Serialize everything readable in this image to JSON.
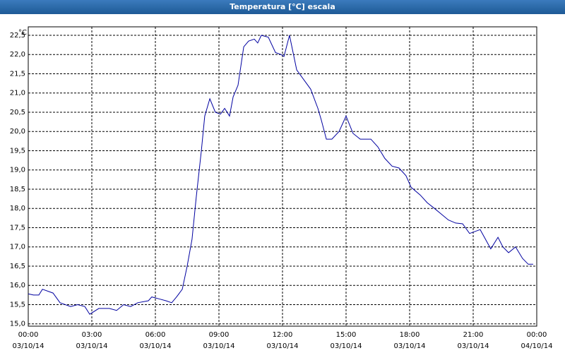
{
  "chart_data": {
    "type": "line",
    "title": "Temperatura [°C] escala",
    "y_unit": "°C",
    "series": [
      {
        "name": "Temperatura",
        "color": "#0000a0",
        "x": [
          0,
          0.25,
          0.5,
          0.67,
          1.17,
          1.5,
          2.0,
          2.33,
          2.67,
          2.9,
          3.33,
          3.83,
          4.17,
          4.5,
          4.83,
          5.17,
          5.67,
          5.83,
          6.17,
          6.5,
          6.77,
          7.0,
          7.27,
          7.5,
          7.73,
          7.93,
          8.17,
          8.33,
          8.57,
          8.83,
          9.07,
          9.27,
          9.5,
          9.67,
          9.9,
          10.17,
          10.4,
          10.67,
          10.83,
          11.0,
          11.33,
          11.67,
          11.93,
          12.07,
          12.33,
          12.67,
          13.0,
          13.33,
          13.67,
          13.83,
          14.07,
          14.33,
          14.67,
          15.0,
          15.33,
          15.67,
          16.17,
          16.5,
          16.83,
          17.17,
          17.5,
          17.83,
          18.07,
          18.5,
          18.83,
          19.17,
          19.5,
          19.83,
          20.17,
          20.5,
          20.83,
          21.33,
          21.83,
          22.17,
          22.4,
          22.67,
          23.0,
          23.33,
          23.6,
          23.83
        ],
        "values": [
          15.78,
          15.75,
          15.75,
          15.9,
          15.8,
          15.55,
          15.45,
          15.5,
          15.45,
          15.25,
          15.4,
          15.4,
          15.35,
          15.5,
          15.45,
          15.55,
          15.6,
          15.7,
          15.65,
          15.6,
          15.55,
          15.7,
          15.9,
          16.5,
          17.2,
          18.3,
          19.5,
          20.4,
          20.85,
          20.5,
          20.45,
          20.6,
          20.4,
          20.9,
          21.2,
          22.2,
          22.35,
          22.4,
          22.3,
          22.5,
          22.45,
          22.05,
          22.0,
          21.95,
          22.5,
          21.6,
          21.35,
          21.1,
          20.6,
          20.3,
          19.8,
          19.8,
          20.0,
          20.4,
          19.95,
          19.8,
          19.8,
          19.6,
          19.3,
          19.1,
          19.05,
          18.85,
          18.55,
          18.35,
          18.15,
          18.0,
          17.85,
          17.7,
          17.62,
          17.6,
          17.35,
          17.45,
          16.95,
          17.25,
          17.0,
          16.85,
          17.0,
          16.7,
          16.55,
          16.55
        ]
      }
    ],
    "xlim": [
      0,
      24
    ],
    "ylim": [
      14.94,
      22.72
    ],
    "xticks": [
      {
        "value": 0,
        "label": "00:00"
      },
      {
        "value": 3,
        "label": "03:00"
      },
      {
        "value": 6,
        "label": "06:00"
      },
      {
        "value": 9,
        "label": "09:00"
      },
      {
        "value": 12,
        "label": "12:00"
      },
      {
        "value": 15,
        "label": "15:00"
      },
      {
        "value": 18,
        "label": "18:00"
      },
      {
        "value": 21,
        "label": "21:00"
      },
      {
        "value": 24,
        "label": "00:00"
      }
    ],
    "xtick_dates": [
      "03/10/14",
      "03/10/14",
      "03/10/14",
      "03/10/14",
      "03/10/14",
      "03/10/14",
      "03/10/14",
      "03/10/14",
      "04/10/14"
    ],
    "yticks": [
      {
        "value": 15,
        "label": "15,0"
      },
      {
        "value": 15.5,
        "label": "15,5"
      },
      {
        "value": 16,
        "label": "16,0"
      },
      {
        "value": 16.5,
        "label": "16,5"
      },
      {
        "value": 17,
        "label": "17,0"
      },
      {
        "value": 17.5,
        "label": "17,5"
      },
      {
        "value": 18,
        "label": "18,0"
      },
      {
        "value": 18.5,
        "label": "18,5"
      },
      {
        "value": 19,
        "label": "19,0"
      },
      {
        "value": 19.5,
        "label": "19,5"
      },
      {
        "value": 20,
        "label": "20,0"
      },
      {
        "value": 20.5,
        "label": "20,5"
      },
      {
        "value": 21,
        "label": "21,0"
      },
      {
        "value": 21.5,
        "label": "21,5"
      },
      {
        "value": 22,
        "label": "22,0"
      },
      {
        "value": 22.5,
        "label": "22,5"
      }
    ],
    "grid": true
  }
}
